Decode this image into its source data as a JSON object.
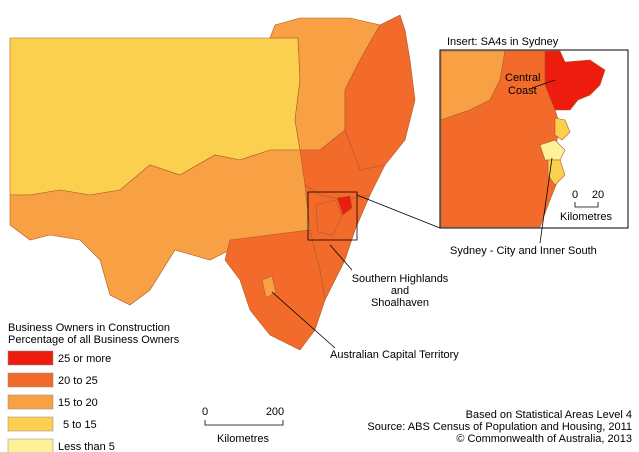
{
  "inset": {
    "title": "Insert: SA4s in Sydney",
    "central_coast_label": [
      "Central",
      "Coast"
    ],
    "scale": {
      "ticks": [
        0,
        20
      ],
      "unit": "Kilometres"
    }
  },
  "labels": {
    "sydney": "Sydney - City and Inner South",
    "southern_highlands": [
      "Southern Highlands",
      "and",
      "Shoalhaven"
    ],
    "act": "Australian Capital Territory"
  },
  "legend": {
    "title": [
      "Business Owners in Construction",
      "Percentage of all Business Owners"
    ],
    "items": [
      {
        "label": "25 or more",
        "color": "#ee1c0e"
      },
      {
        "label": "20 to 25",
        "color": "#f26b2a"
      },
      {
        "label": "15 to 20",
        "color": "#f7a044"
      },
      {
        "label": "5 to 15",
        "color": "#fcd04f"
      },
      {
        "label": "Less than 5",
        "color": "#fdf29a"
      }
    ]
  },
  "scale": {
    "ticks": [
      0,
      200
    ],
    "unit": "Kilometres"
  },
  "notes": [
    "Based on Statistical Areas Level 4",
    "Source: ABS Census of Population and Housing, 2011",
    "© Commonwealth of Australia, 2013"
  ]
}
